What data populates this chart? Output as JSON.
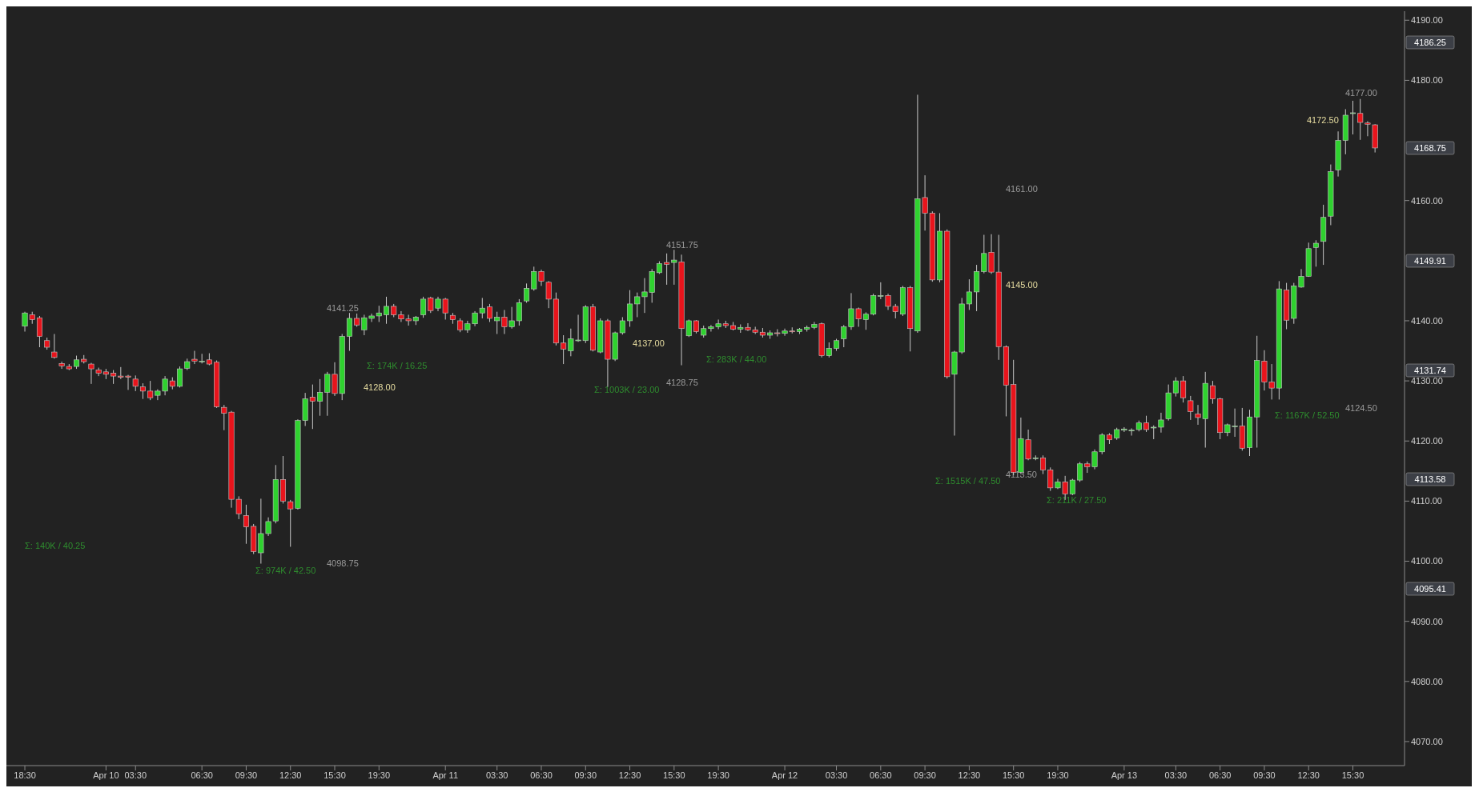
{
  "chart_data": {
    "type": "candlestick",
    "categories": [
      "18:30",
      null,
      null,
      null,
      null,
      null,
      null,
      null,
      null,
      null,
      null,
      "Apr 10",
      null,
      null,
      null,
      "03:30",
      null,
      null,
      null,
      null,
      null,
      null,
      null,
      null,
      "06:30",
      null,
      null,
      null,
      null,
      null,
      "09:30",
      null,
      null,
      null,
      null,
      null,
      "12:30",
      null,
      null,
      null,
      null,
      null,
      "15:30",
      null,
      null,
      null,
      null,
      null,
      "19:30",
      null,
      null,
      null,
      null,
      null,
      null,
      null,
      null,
      "Apr 11",
      null,
      null,
      null,
      null,
      null,
      null,
      "03:30",
      null,
      null,
      null,
      null,
      null,
      "06:30",
      null,
      null,
      null,
      null,
      null,
      "09:30",
      null,
      null,
      null,
      null,
      null,
      "12:30",
      null,
      null,
      null,
      null,
      null,
      "15:30",
      null,
      null,
      null,
      null,
      null,
      "19:30",
      null,
      null,
      null,
      null,
      null,
      null,
      null,
      null,
      "Apr 12",
      null,
      null,
      null,
      null,
      null,
      null,
      "03:30",
      null,
      null,
      null,
      null,
      null,
      "06:30",
      null,
      null,
      null,
      null,
      null,
      "09:30",
      null,
      null,
      null,
      null,
      null,
      "12:30",
      null,
      null,
      null,
      null,
      null,
      "15:30",
      null,
      null,
      null,
      null,
      null,
      "19:30",
      null,
      null,
      null,
      null,
      null,
      null,
      null,
      null,
      "Apr 13",
      null,
      null,
      null,
      null,
      null,
      null,
      "03:30",
      null,
      null,
      null,
      null,
      null,
      "06:30",
      null,
      null,
      null,
      null,
      null,
      "09:30",
      null,
      null,
      null,
      null,
      null,
      "12:30",
      null,
      null,
      null,
      null,
      null,
      "15:30",
      null,
      null,
      null
    ],
    "ohlc": [
      [
        4139.1,
        4141.5,
        4138.2,
        4141.3
      ],
      [
        4141.0,
        4141.5,
        4139.5,
        4140.2
      ],
      [
        4140.5,
        4140.8,
        4135.6,
        4137.4
      ],
      [
        4136.7,
        4137.2,
        4135.2,
        4135.6
      ],
      [
        4134.8,
        4137.8,
        4133.7,
        4133.9
      ],
      [
        4132.9,
        4133.2,
        4132.0,
        4132.5
      ],
      [
        4132.4,
        4132.8,
        4131.8,
        4132.0
      ],
      [
        4132.4,
        4134.2,
        4132.0,
        4133.5
      ],
      [
        4133.6,
        4134.3,
        4132.9,
        4133.2
      ],
      [
        4132.8,
        4133.0,
        4129.5,
        4132.0
      ],
      [
        4131.8,
        4132.2,
        4130.8,
        4131.3
      ],
      [
        4131.5,
        4132.0,
        4130.3,
        4131.1
      ],
      [
        4131.3,
        4131.8,
        4129.5,
        4130.8
      ],
      [
        4130.8,
        4132.3,
        4130.3,
        4130.6
      ],
      [
        4130.8,
        4131.0,
        4128.5,
        4130.6
      ],
      [
        4130.3,
        4130.9,
        4128.3,
        4129.1
      ],
      [
        4129.0,
        4129.6,
        4127.0,
        4128.3
      ],
      [
        4128.3,
        4130.0,
        4126.8,
        4127.2
      ],
      [
        4127.6,
        4128.6,
        4126.8,
        4128.3
      ],
      [
        4128.3,
        4130.8,
        4127.6,
        4130.3
      ],
      [
        4130.0,
        4130.6,
        4128.6,
        4129.1
      ],
      [
        4129.1,
        4132.4,
        4128.9,
        4132.0
      ],
      [
        4132.1,
        4133.7,
        4131.8,
        4133.2
      ],
      [
        4133.6,
        4135.0,
        4132.8,
        4133.3
      ],
      [
        4133.3,
        4134.5,
        4132.9,
        4133.3
      ],
      [
        4133.5,
        4134.6,
        4132.6,
        4132.8
      ],
      [
        4133.1,
        4133.4,
        4125.5,
        4125.7
      ],
      [
        4125.6,
        4126.0,
        4121.8,
        4124.6
      ],
      [
        4124.8,
        4125.0,
        4108.9,
        4110.3
      ],
      [
        4110.3,
        4110.8,
        4107.0,
        4107.9
      ],
      [
        4107.6,
        4109.4,
        4102.9,
        4105.7
      ],
      [
        4105.8,
        4106.2,
        4101.2,
        4101.6
      ],
      [
        4101.4,
        4110.4,
        4099.6,
        4104.6
      ],
      [
        4104.6,
        4107.3,
        4104.2,
        4106.6
      ],
      [
        4106.7,
        4116.0,
        4106.3,
        4113.6
      ],
      [
        4113.6,
        4117.5,
        4109.6,
        4110.0
      ],
      [
        4109.9,
        4110.2,
        4102.4,
        4108.7
      ],
      [
        4108.8,
        4123.6,
        4108.6,
        4123.4
      ],
      [
        4123.4,
        4128.0,
        4122.5,
        4127.0
      ],
      [
        4127.3,
        4129.4,
        4122.0,
        4126.6
      ],
      [
        4126.6,
        4130.3,
        4124.2,
        4128.1
      ],
      [
        4128.1,
        4131.5,
        4124.2,
        4131.1
      ],
      [
        4131.1,
        4133.1,
        4127.5,
        4127.9
      ],
      [
        4127.9,
        4137.8,
        4126.8,
        4137.4
      ],
      [
        4137.4,
        4141.3,
        4135.0,
        4140.4
      ],
      [
        4140.4,
        4141.2,
        4139.0,
        4139.3
      ],
      [
        4138.5,
        4141.0,
        4137.6,
        4140.5
      ],
      [
        4140.4,
        4141.2,
        4139.8,
        4140.8
      ],
      [
        4140.8,
        4142.5,
        4139.8,
        4141.3
      ],
      [
        4141.0,
        4144.0,
        4139.5,
        4142.4
      ],
      [
        4142.4,
        4142.8,
        4140.6,
        4141.0
      ],
      [
        4141.0,
        4141.6,
        4139.8,
        4140.3
      ],
      [
        4140.3,
        4141.0,
        4139.2,
        4140.0
      ],
      [
        4140.0,
        4140.8,
        4139.3,
        4140.6
      ],
      [
        4141.0,
        4144.0,
        4140.5,
        4143.6
      ],
      [
        4143.8,
        4144.0,
        4141.3,
        4141.7
      ],
      [
        4142.1,
        4144.0,
        4141.6,
        4143.6
      ],
      [
        4143.6,
        4143.8,
        4140.2,
        4141.3
      ],
      [
        4140.9,
        4141.3,
        4139.5,
        4140.2
      ],
      [
        4140.0,
        4140.4,
        4138.1,
        4138.5
      ],
      [
        4138.5,
        4140.0,
        4138.0,
        4139.5
      ],
      [
        4139.5,
        4141.6,
        4139.1,
        4141.3
      ],
      [
        4141.3,
        4143.8,
        4140.4,
        4142.1
      ],
      [
        4142.3,
        4142.8,
        4139.8,
        4140.4
      ],
      [
        4140.0,
        4141.5,
        4137.8,
        4140.6
      ],
      [
        4140.6,
        4141.8,
        4137.8,
        4139.0
      ],
      [
        4139.0,
        4142.3,
        4138.7,
        4140.0
      ],
      [
        4140.0,
        4143.6,
        4139.2,
        4143.0
      ],
      [
        4143.3,
        4146.2,
        4143.0,
        4145.4
      ],
      [
        4145.3,
        4149.0,
        4145.0,
        4148.2
      ],
      [
        4148.2,
        4148.5,
        4145.8,
        4146.6
      ],
      [
        4146.4,
        4146.6,
        4142.1,
        4143.6
      ],
      [
        4143.6,
        4144.7,
        4135.9,
        4136.3
      ],
      [
        4136.3,
        4137.6,
        4132.8,
        4135.3
      ],
      [
        4135.0,
        4138.7,
        4134.1,
        4137.0
      ],
      [
        4136.8,
        4141.0,
        4136.5,
        4136.8
      ],
      [
        4136.7,
        4142.6,
        4136.3,
        4142.3
      ],
      [
        4142.3,
        4142.8,
        4134.9,
        4135.1
      ],
      [
        4134.8,
        4140.4,
        4134.6,
        4140.0
      ],
      [
        4140.0,
        4140.3,
        4129.0,
        4133.6
      ],
      [
        4133.6,
        4138.2,
        4133.3,
        4138.0
      ],
      [
        4138.0,
        4140.6,
        4137.7,
        4140.0
      ],
      [
        4140.0,
        4145.1,
        4139.0,
        4142.8
      ],
      [
        4142.8,
        4144.7,
        4140.6,
        4144.0
      ],
      [
        4144.0,
        4147.1,
        4141.3,
        4144.8
      ],
      [
        4144.7,
        4148.6,
        4143.0,
        4148.2
      ],
      [
        4148.0,
        4149.9,
        4147.8,
        4149.5
      ],
      [
        4149.7,
        4151.2,
        4146.0,
        4149.4
      ],
      [
        4149.7,
        4151.8,
        4146.0,
        4150.1
      ],
      [
        4149.8,
        4151.0,
        4132.6,
        4138.7
      ],
      [
        4137.5,
        4140.2,
        4137.3,
        4140.0
      ],
      [
        4140.0,
        4140.1,
        4137.9,
        4138.2
      ],
      [
        4137.6,
        4139.2,
        4137.2,
        4138.7
      ],
      [
        4138.7,
        4139.3,
        4138.2,
        4139.0
      ],
      [
        4139.0,
        4140.2,
        4138.6,
        4139.5
      ],
      [
        4139.5,
        4140.0,
        4138.8,
        4139.2
      ],
      [
        4139.2,
        4139.8,
        4138.4,
        4138.6
      ],
      [
        4138.6,
        4139.4,
        4138.0,
        4138.9
      ],
      [
        4138.9,
        4139.6,
        4138.3,
        4138.5
      ],
      [
        4138.5,
        4139.0,
        4137.8,
        4138.1
      ],
      [
        4138.1,
        4138.8,
        4137.2,
        4137.6
      ],
      [
        4137.6,
        4138.4,
        4137.0,
        4138.0
      ],
      [
        4138.0,
        4138.6,
        4137.4,
        4137.9
      ],
      [
        4137.9,
        4138.7,
        4137.5,
        4138.3
      ],
      [
        4138.3,
        4138.9,
        4137.9,
        4138.2
      ],
      [
        4138.2,
        4138.8,
        4137.8,
        4138.6
      ],
      [
        4138.6,
        4139.2,
        4138.2,
        4138.9
      ],
      [
        4138.9,
        4139.8,
        4138.6,
        4139.4
      ],
      [
        4139.5,
        4139.7,
        4133.9,
        4134.2
      ],
      [
        4134.2,
        4136.4,
        4133.9,
        4135.4
      ],
      [
        4135.4,
        4137.0,
        4135.0,
        4136.7
      ],
      [
        4137.0,
        4139.3,
        4135.6,
        4139.0
      ],
      [
        4139.0,
        4144.6,
        4138.5,
        4142.0
      ],
      [
        4142.0,
        4142.2,
        4139.0,
        4140.3
      ],
      [
        4140.2,
        4141.4,
        4138.5,
        4141.1
      ],
      [
        4141.1,
        4144.5,
        4140.9,
        4144.2
      ],
      [
        4144.2,
        4146.4,
        4143.6,
        4144.2
      ],
      [
        4144.2,
        4144.5,
        4141.8,
        4142.4
      ],
      [
        4142.4,
        4142.8,
        4140.4,
        4141.5
      ],
      [
        4141.1,
        4145.8,
        4140.8,
        4145.5
      ],
      [
        4145.5,
        4145.8,
        4134.9,
        4138.7
      ],
      [
        4138.3,
        4177.6,
        4138.0,
        4160.3
      ],
      [
        4160.5,
        4164.2,
        4155.0,
        4157.9
      ],
      [
        4157.9,
        4158.2,
        4146.5,
        4146.8
      ],
      [
        4146.8,
        4157.9,
        4146.4,
        4154.9
      ],
      [
        4154.9,
        4155.2,
        4130.4,
        4130.7
      ],
      [
        4131.1,
        4135.0,
        4120.9,
        4134.8
      ],
      [
        4134.8,
        4143.8,
        4134.5,
        4142.8
      ],
      [
        4142.8,
        4146.9,
        4141.8,
        4144.8
      ],
      [
        4144.8,
        4149.3,
        4141.6,
        4148.2
      ],
      [
        4148.2,
        4154.3,
        4147.9,
        4151.2
      ],
      [
        4151.4,
        4154.4,
        4147.8,
        4148.1
      ],
      [
        4148.1,
        4154.3,
        4133.5,
        4135.7
      ],
      [
        4135.7,
        4135.9,
        4124.1,
        4129.3
      ],
      [
        4129.4,
        4133.5,
        4114.3,
        4114.8
      ],
      [
        4114.8,
        4123.9,
        4114.5,
        4120.4
      ],
      [
        4120.2,
        4121.9,
        4116.8,
        4117.0
      ],
      [
        4117.2,
        4117.6,
        4116.8,
        4117.2
      ],
      [
        4117.2,
        4117.6,
        4114.5,
        4115.2
      ],
      [
        4115.2,
        4115.6,
        4111.7,
        4112.2
      ],
      [
        4112.2,
        4113.7,
        4112.0,
        4113.2
      ],
      [
        4113.2,
        4114.2,
        4110.2,
        4111.2
      ],
      [
        4111.2,
        4113.7,
        4111.0,
        4113.5
      ],
      [
        4113.5,
        4116.5,
        4113.2,
        4116.2
      ],
      [
        4116.2,
        4116.6,
        4114.7,
        4115.7
      ],
      [
        4115.7,
        4118.6,
        4115.3,
        4118.2
      ],
      [
        4118.2,
        4121.3,
        4117.8,
        4121.0
      ],
      [
        4121.0,
        4121.3,
        4119.5,
        4120.2
      ],
      [
        4120.5,
        4122.2,
        4120.2,
        4121.9
      ],
      [
        4121.8,
        4122.3,
        4121.5,
        4122.0
      ],
      [
        4121.8,
        4122.1,
        4120.9,
        4121.8
      ],
      [
        4121.9,
        4123.4,
        4121.6,
        4123.0
      ],
      [
        4123.0,
        4124.2,
        4121.5,
        4121.9
      ],
      [
        4122.3,
        4122.6,
        4120.3,
        4122.3
      ],
      [
        4122.3,
        4124.7,
        4121.4,
        4123.5
      ],
      [
        4123.7,
        4129.4,
        4123.4,
        4128.0
      ],
      [
        4128.0,
        4130.6,
        4127.4,
        4130.0
      ],
      [
        4130.0,
        4130.8,
        4126.4,
        4127.2
      ],
      [
        4126.7,
        4127.5,
        4123.5,
        4124.9
      ],
      [
        4124.5,
        4126.0,
        4122.7,
        4123.9
      ],
      [
        4123.7,
        4131.5,
        4118.9,
        4129.6
      ],
      [
        4129.2,
        4130.0,
        4126.2,
        4127.0
      ],
      [
        4127.0,
        4127.2,
        4120.3,
        4121.4
      ],
      [
        4121.4,
        4122.9,
        4120.8,
        4122.7
      ],
      [
        4122.5,
        4125.4,
        4120.7,
        4122.5
      ],
      [
        4122.5,
        4125.5,
        4118.4,
        4118.8
      ],
      [
        4118.9,
        4125.2,
        4117.5,
        4124.0
      ],
      [
        4124.0,
        4137.5,
        4118.9,
        4133.4
      ],
      [
        4133.3,
        4135.1,
        4128.4,
        4129.8
      ],
      [
        4129.8,
        4132.8,
        4126.9,
        4128.8
      ],
      [
        4128.8,
        4146.6,
        4126.9,
        4145.3
      ],
      [
        4145.1,
        4146.3,
        4138.6,
        4140.1
      ],
      [
        4140.4,
        4146.3,
        4139.5,
        4145.8
      ],
      [
        4145.6,
        4148.6,
        4145.5,
        4147.4
      ],
      [
        4147.4,
        4153.0,
        4147.3,
        4152.0
      ],
      [
        4152.2,
        4153.4,
        4149.0,
        4152.9
      ],
      [
        4153.2,
        4159.3,
        4149.3,
        4157.2
      ],
      [
        4157.4,
        4166.0,
        4155.9,
        4164.8
      ],
      [
        4165.1,
        4171.5,
        4164.0,
        4170.0
      ],
      [
        4170.0,
        4175.2,
        4167.7,
        4174.2
      ],
      [
        4174.6,
        4176.6,
        4171.0,
        4174.6
      ],
      [
        4174.5,
        4176.9,
        4170.1,
        4173.0
      ],
      [
        4172.9,
        4173.2,
        4170.7,
        4172.7
      ],
      [
        4172.6,
        4172.7,
        4168.0,
        4168.75
      ]
    ],
    "colors": [
      "#2fd22f",
      "#e8141c",
      "#e8141c",
      "#e8141c",
      "#e8141c",
      "#e8141c",
      "#e8141c",
      "#2fd22f",
      "#e8141c",
      "#e8141c",
      "#e8141c",
      "#e8141c",
      "#e8141c",
      "#e8141c",
      "#e8141c",
      "#e8141c",
      "#e8141c",
      "#e8141c",
      "#2fd22f",
      "#2fd22f",
      "#e8141c",
      "#2fd22f",
      "#2fd22f",
      "#e8141c",
      "#2fd22f",
      "#e8141c",
      "#e8141c",
      "#e8141c",
      "#e8141c",
      "#e8141c",
      "#e8141c",
      "#e8141c",
      "#2fd22f",
      "#2fd22f",
      "#2fd22f",
      "#e8141c",
      "#e8141c",
      "#2fd22f",
      "#2fd22f",
      "#e8141c",
      "#2fd22f",
      "#2fd22f",
      "#e8141c",
      "#2fd22f",
      "#2fd22f",
      "#e8141c",
      "#2fd22f",
      "#2fd22f",
      "#2fd22f",
      "#2fd22f",
      "#e8141c",
      "#e8141c",
      "#e8141c",
      "#2fd22f",
      "#2fd22f",
      "#e8141c",
      "#2fd22f",
      "#e8141c",
      "#e8141c",
      "#e8141c",
      "#2fd22f",
      "#2fd22f",
      "#2fd22f",
      "#e8141c",
      "#2fd22f",
      "#e8141c",
      "#2fd22f",
      "#2fd22f",
      "#2fd22f",
      "#2fd22f",
      "#e8141c",
      "#e8141c",
      "#e8141c",
      "#e8141c",
      "#2fd22f",
      "#2fd22f",
      "#2fd22f",
      "#e8141c",
      "#2fd22f",
      "#e8141c",
      "#2fd22f",
      "#2fd22f",
      "#2fd22f",
      "#2fd22f",
      "#2fd22f",
      "#2fd22f",
      "#2fd22f",
      "#e8141c",
      "#2fd22f",
      "#e8141c",
      "#2fd22f",
      "#e8141c",
      "#2fd22f",
      "#2fd22f",
      "#2fd22f",
      "#e8141c",
      "#e8141c",
      "#2fd22f",
      "#e8141c",
      "#e8141c",
      "#e8141c",
      "#2fd22f",
      "#e8141c",
      "#2fd22f",
      "#e8141c",
      "#2fd22f",
      "#2fd22f",
      "#2fd22f",
      "#e8141c",
      "#2fd22f",
      "#2fd22f",
      "#2fd22f",
      "#2fd22f",
      "#e8141c",
      "#2fd22f",
      "#2fd22f",
      "#2fd22f",
      "#e8141c",
      "#e8141c",
      "#2fd22f",
      "#e8141c",
      "#2fd22f",
      "#e8141c",
      "#e8141c",
      "#2fd22f",
      "#e8141c",
      "#2fd22f",
      "#2fd22f",
      "#2fd22f",
      "#2fd22f",
      "#2fd22f",
      "#e8141c",
      "#e8141c",
      "#e8141c",
      "#e8141c",
      "#2fd22f",
      "#e8141c",
      "#2fd22f",
      "#e8141c",
      "#e8141c",
      "#2fd22f",
      "#e8141c",
      "#2fd22f",
      "#2fd22f",
      "#e8141c",
      "#2fd22f",
      "#2fd22f",
      "#e8141c",
      "#2fd22f",
      "#2fd22f",
      "#2fd22f",
      "#2fd22f",
      "#e8141c",
      "#2fd22f",
      "#2fd22f",
      "#2fd22f",
      "#2fd22f",
      "#e8141c",
      "#e8141c",
      "#e8141c",
      "#2fd22f",
      "#e8141c",
      "#e8141c",
      "#2fd22f",
      "#2fd22f",
      "#e8141c",
      "#2fd22f",
      "#2fd22f",
      "#e8141c",
      "#e8141c",
      "#2fd22f",
      "#e8141c",
      "#2fd22f",
      "#2fd22f",
      "#2fd22f",
      "#2fd22f",
      "#2fd22f",
      "#2fd22f",
      "#2fd22f",
      "#2fd22f",
      "#2fd22f",
      "#e8141c",
      "#e8141c",
      "#e8141c"
    ],
    "ylim": [
      4066,
      4191.5
    ],
    "yticks": [
      {
        "value": 4070,
        "label": "4070.00"
      },
      {
        "value": 4080,
        "label": "4080.00"
      },
      {
        "value": 4090,
        "label": "4090.00"
      },
      {
        "value": 4100,
        "label": "4100.00"
      },
      {
        "value": 4110,
        "label": "4110.00"
      },
      {
        "value": 4120,
        "label": "4120.00"
      },
      {
        "value": 4130,
        "label": "4130.00"
      },
      {
        "value": 4140,
        "label": "4140.00"
      },
      {
        "value": 4160,
        "label": "4160.00"
      },
      {
        "value": 4180,
        "label": "4180.00"
      },
      {
        "value": 4190,
        "label": "4190.00"
      }
    ],
    "annotations": [
      "Σ: 140K / 40.25",
      "4141.25",
      "4128.00",
      "4098.75",
      "Σ: 974K / 42.50",
      "Σ: 174K / 16.25",
      "4151.75",
      "4137.00",
      "4128.75",
      "Σ: 1003K / 23.00",
      "Σ: 283K / 44.00",
      "4161.00",
      "4145.00",
      "4113.50",
      "Σ: 1515K / 47.50",
      "Σ: 211K / 27.50",
      "4177.00",
      "4172.50",
      "4124.50",
      "Σ: 1167K / 52.50",
      "4186.25",
      "4168.75",
      "4149.91",
      "4131.74",
      "4113.58",
      "4095.41"
    ]
  }
}
